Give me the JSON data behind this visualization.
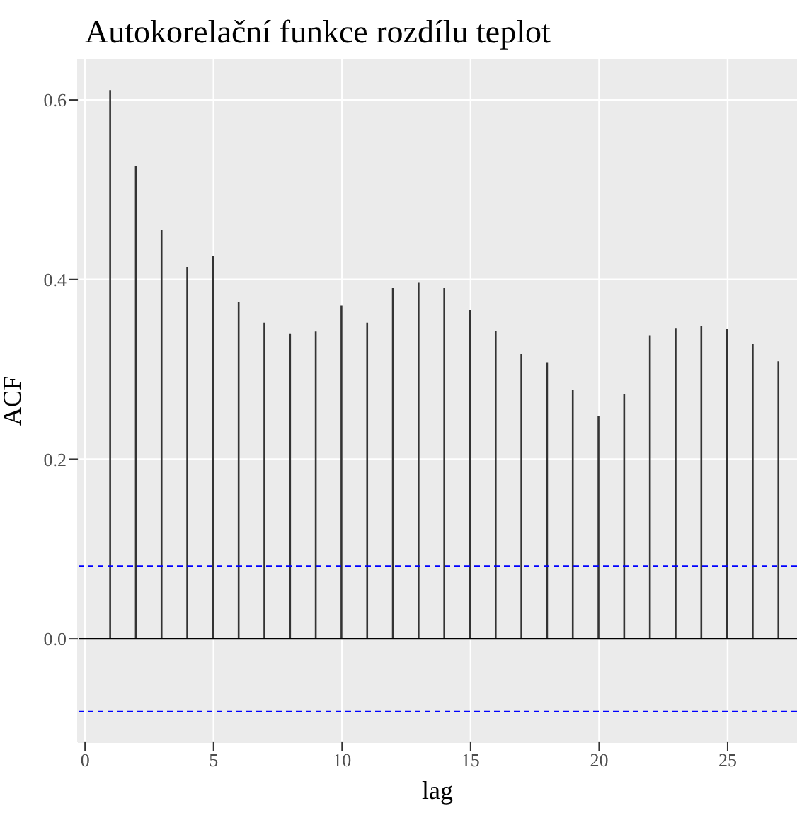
{
  "chart_data": {
    "type": "bar",
    "title": "Autokorelační funkce rozdílu teplot",
    "xlabel": "lag",
    "ylabel": "ACF",
    "x": [
      1,
      2,
      3,
      4,
      5,
      6,
      7,
      8,
      9,
      10,
      11,
      12,
      13,
      14,
      15,
      16,
      17,
      18,
      19,
      20,
      21,
      22,
      23,
      24,
      25,
      26,
      27
    ],
    "values": [
      0.611,
      0.526,
      0.455,
      0.414,
      0.426,
      0.375,
      0.352,
      0.34,
      0.342,
      0.371,
      0.352,
      0.391,
      0.397,
      0.391,
      0.366,
      0.343,
      0.317,
      0.308,
      0.277,
      0.248,
      0.272,
      0.338,
      0.346,
      0.348,
      0.345,
      0.328,
      0.309
    ],
    "color": "#333333",
    "xlim": [
      -0.28,
      27.7
    ],
    "xticks": [
      0,
      5,
      10,
      15,
      20,
      25
    ],
    "ylim": [
      -0.115,
      0.645
    ],
    "yticks": [
      {
        "value": 0,
        "label": "0.0"
      },
      {
        "value": 0.2,
        "label": "0.2"
      },
      {
        "value": 0.4,
        "label": "0.4"
      },
      {
        "value": 0.6,
        "label": "0.6"
      }
    ],
    "ref_lines": [
      {
        "axis": "y",
        "value": 0,
        "label": null,
        "color": "#000000",
        "line_style": "solid"
      },
      {
        "axis": "y",
        "value": 0.081,
        "label": null,
        "color": "#0000ff",
        "line_style": "dashed"
      },
      {
        "axis": "y",
        "value": -0.081,
        "label": null,
        "color": "#0000ff",
        "line_style": "dashed"
      }
    ],
    "grid": true
  }
}
